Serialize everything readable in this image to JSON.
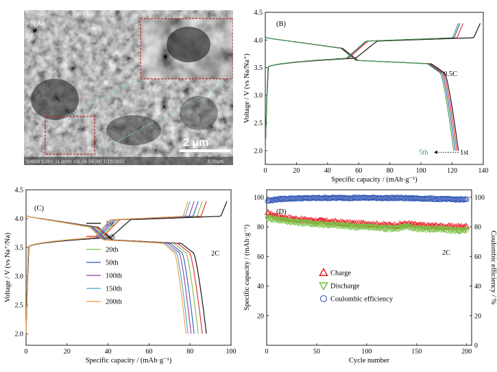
{
  "panel_a": {
    "letter": "(A)",
    "scale_text": "2 μm",
    "info_bar": "S4800 5.0kV 11.8mm x11.0k SE(M) 1/15/2021",
    "info_scale": "5.00μm"
  },
  "chart_data": [
    {
      "id": "B",
      "type": "line",
      "panel_label": "(B)",
      "rate_label": "0.5C",
      "xlabel": "Specific capacity / (mAh·g⁻¹)",
      "ylabel": "Voltage / V (vs Na/Na⁺)",
      "xlim": [
        0,
        140
      ],
      "ylim": [
        1.75,
        4.5
      ],
      "xticks": [
        0,
        20,
        40,
        60,
        80,
        100,
        120,
        140
      ],
      "yticks": [
        2.0,
        2.5,
        3.0,
        3.5,
        4.0,
        4.5
      ],
      "annotations": [
        "1st",
        "5th"
      ],
      "series": [
        {
          "color": "#000000",
          "charge_capacity": 138,
          "discharge_capacity": 124
        },
        {
          "color": "#e8202a",
          "charge_capacity": 127,
          "discharge_capacity": 123
        },
        {
          "color": "#2f55b7",
          "charge_capacity": 125,
          "discharge_capacity": 122
        },
        {
          "color": "#3f9b45",
          "charge_capacity": 124,
          "discharge_capacity": 121
        }
      ]
    },
    {
      "id": "C",
      "type": "line",
      "panel_label": "(C)",
      "rate_label": "2C",
      "xlabel": "Specific capacity / (mAh·g⁻¹)",
      "ylabel": "Voltage / V (vs Na⁺/Na)",
      "xlim": [
        0,
        100
      ],
      "ylim": [
        1.8,
        4.5
      ],
      "xticks": [
        0,
        20,
        40,
        60,
        80,
        100
      ],
      "yticks": [
        2.0,
        2.5,
        3.0,
        3.5,
        4.0,
        4.5
      ],
      "series": [
        {
          "name": "1st",
          "color": "#000000",
          "charge_capacity": 98,
          "discharge_capacity": 88
        },
        {
          "name": "5th",
          "color": "#e8202a",
          "charge_capacity": 88,
          "discharge_capacity": 86
        },
        {
          "name": "20th",
          "color": "#7ac143",
          "charge_capacity": 86,
          "discharge_capacity": 84
        },
        {
          "name": "50th",
          "color": "#2f55b7",
          "charge_capacity": 84,
          "discharge_capacity": 82
        },
        {
          "name": "100th",
          "color": "#8a3f96",
          "charge_capacity": 82,
          "discharge_capacity": 80.5
        },
        {
          "name": "150th",
          "color": "#3fa5c8",
          "charge_capacity": 80,
          "discharge_capacity": 79
        },
        {
          "name": "200th",
          "color": "#f39a3b",
          "charge_capacity": 79,
          "discharge_capacity": 78
        }
      ]
    },
    {
      "id": "D",
      "type": "scatter",
      "panel_label": "(D)",
      "rate_label": "2C",
      "xlabel": "Cycle number",
      "ylabel": "Specific capacity / (mAh·g⁻¹)",
      "y2label": "Coulombic efficiency / %",
      "xlim": [
        0,
        205
      ],
      "ylim": [
        0,
        105
      ],
      "y2lim": [
        0,
        105
      ],
      "xticks": [
        0,
        50,
        100,
        150,
        200
      ],
      "yticks": [
        20,
        40,
        60,
        80,
        100
      ],
      "y2ticks": [
        0,
        20,
        40,
        60,
        80,
        100
      ],
      "series": [
        {
          "name": "Charge",
          "marker": "triangle-up",
          "color": "#e8202a",
          "x": [
            1,
            10,
            20,
            30,
            40,
            50,
            60,
            70,
            80,
            90,
            100,
            110,
            120,
            130,
            140,
            150,
            160,
            170,
            180,
            190,
            200
          ],
          "values": [
            89,
            87,
            86,
            85,
            84.5,
            84,
            83.5,
            83,
            82.5,
            82,
            82,
            81.5,
            81,
            81,
            82,
            81,
            80.5,
            80.5,
            80,
            80,
            80
          ]
        },
        {
          "name": "Discharge",
          "marker": "triangle-down",
          "color": "#7ac143",
          "x": [
            1,
            10,
            20,
            30,
            40,
            50,
            60,
            70,
            80,
            90,
            100,
            110,
            120,
            130,
            140,
            150,
            160,
            170,
            180,
            190,
            200
          ],
          "values": [
            86,
            85,
            84,
            83,
            82.5,
            82,
            81.5,
            81,
            80.5,
            80,
            80,
            79.5,
            79,
            79,
            80,
            79,
            78.5,
            78.5,
            78,
            77.5,
            77.5
          ]
        },
        {
          "name": "Coulombic efficiency",
          "marker": "circle-open",
          "color": "#2f55b7",
          "x": [
            1,
            10,
            20,
            30,
            40,
            50,
            60,
            70,
            80,
            90,
            100,
            110,
            120,
            130,
            140,
            150,
            160,
            170,
            180,
            190,
            200
          ],
          "values": [
            97.5,
            98.5,
            99,
            99.2,
            99.3,
            99.4,
            99.5,
            99.5,
            99.5,
            99.6,
            99.5,
            99.5,
            99.4,
            99.5,
            99.3,
            99.2,
            99,
            98.8,
            98.6,
            98.5,
            98.4
          ]
        }
      ]
    }
  ]
}
